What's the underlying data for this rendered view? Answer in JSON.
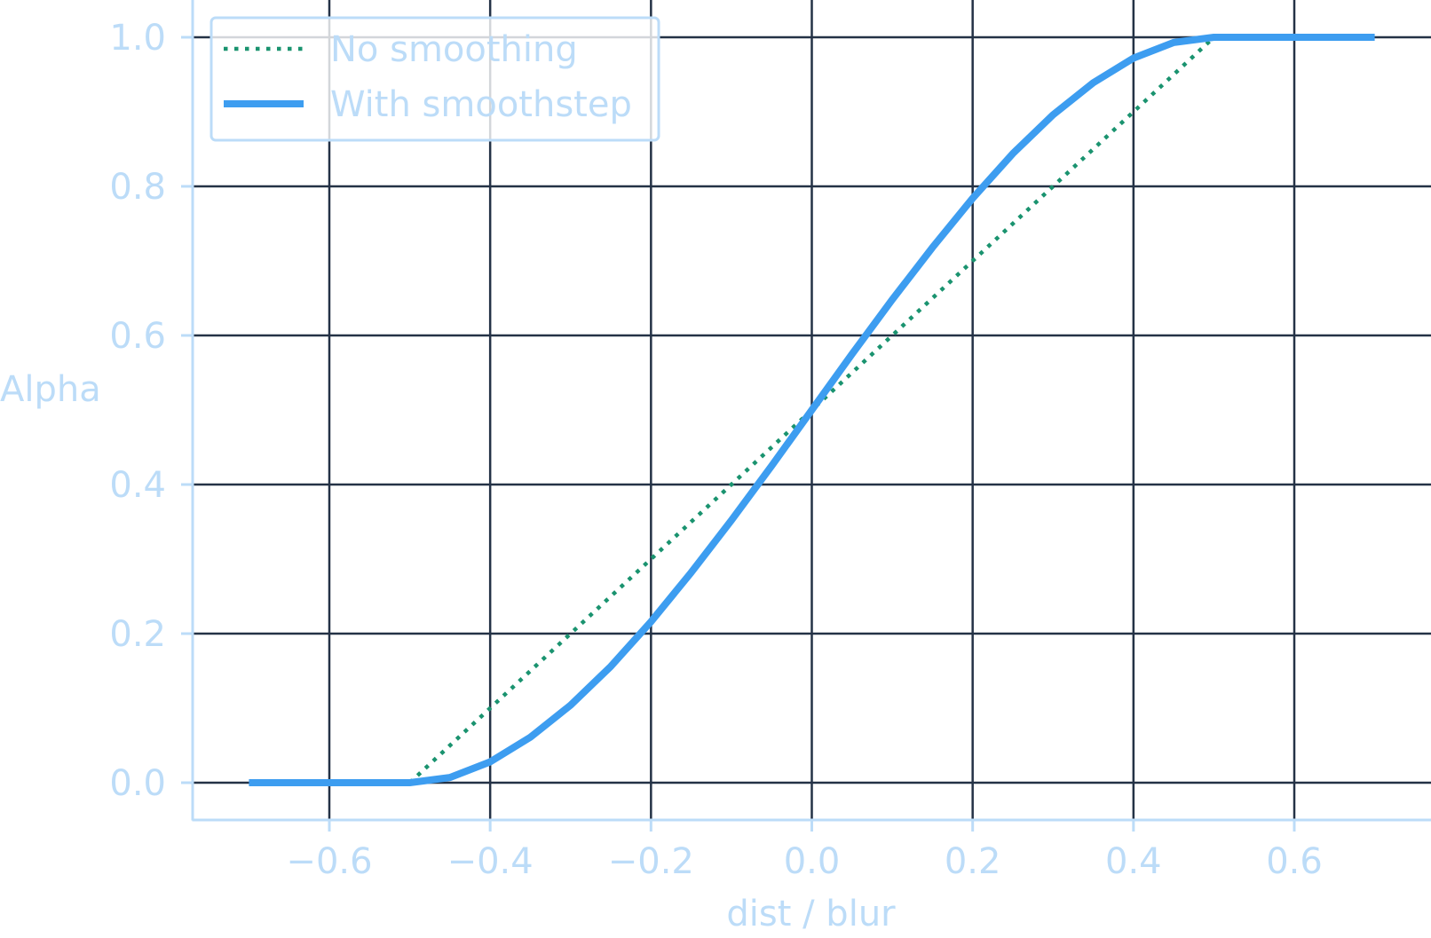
{
  "chart_data": {
    "type": "line",
    "xlabel": "dist / blur",
    "ylabel": "Alpha",
    "xlim": [
      -0.77,
      0.77
    ],
    "ylim": [
      -0.05,
      1.05
    ],
    "x_ticks": [
      -0.6,
      -0.4,
      -0.2,
      0.0,
      0.2,
      0.4,
      0.6
    ],
    "y_ticks": [
      0.0,
      0.2,
      0.4,
      0.6,
      0.8,
      1.0
    ],
    "x_tick_labels": [
      "−0.6",
      "−0.4",
      "−0.2",
      "0.0",
      "0.2",
      "0.4",
      "0.6"
    ],
    "y_tick_labels": [
      "0.0",
      "0.2",
      "0.4",
      "0.6",
      "0.8",
      "1.0"
    ],
    "grid": true,
    "legend_position": "top-left",
    "series": [
      {
        "name": "No smoothing",
        "style": "dotted",
        "color": "#1a936f",
        "x": [
          -0.5,
          0.5
        ],
        "y": [
          0.0,
          1.0
        ]
      },
      {
        "name": "With smoothstep",
        "style": "solid",
        "color": "#3d9df0",
        "x": [
          -0.7,
          -0.5,
          -0.45,
          -0.4,
          -0.35,
          -0.3,
          -0.25,
          -0.2,
          -0.15,
          -0.1,
          -0.05,
          0.0,
          0.05,
          0.1,
          0.15,
          0.2,
          0.25,
          0.3,
          0.35,
          0.4,
          0.45,
          0.5,
          0.7
        ],
        "y": [
          0.0,
          0.0,
          0.007,
          0.028,
          0.061,
          0.104,
          0.156,
          0.216,
          0.282,
          0.352,
          0.425,
          0.5,
          0.575,
          0.648,
          0.718,
          0.784,
          0.844,
          0.896,
          0.939,
          0.972,
          0.993,
          1.0,
          1.0
        ]
      }
    ],
    "colors": {
      "text": "#bcdcf8",
      "spine": "#bcdcf8",
      "grid": "#243246"
    }
  }
}
